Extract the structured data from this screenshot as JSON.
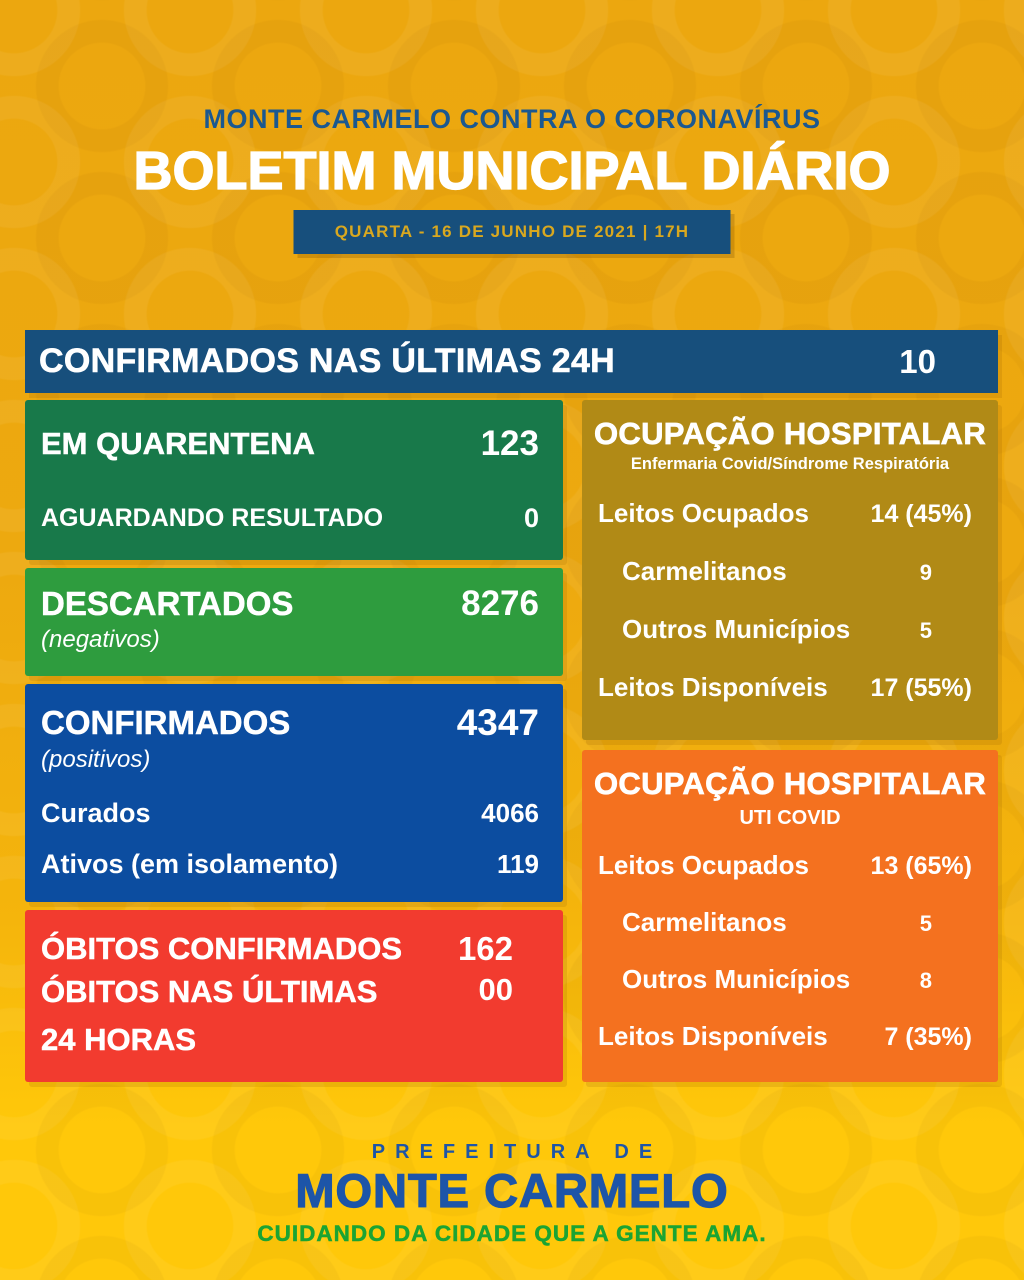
{
  "header": {
    "supertitle": "MONTE CARMELO CONTRA O CORONAVÍRUS",
    "title": "BOLETIM MUNICIPAL DIÁRIO",
    "date_badge": "QUARTA - 16 DE JUNHO DE 2021 | 17H"
  },
  "summary_bar": {
    "label": "CONFIRMADOS NAS ÚLTIMAS 24H",
    "value": "10"
  },
  "left_column": {
    "quarantine_box": {
      "rows": [
        {
          "label": "EM QUARENTENA",
          "value": "123"
        },
        {
          "label": "AGUARDANDO RESULTADO",
          "value": "0"
        }
      ]
    },
    "discarded_box": {
      "label": "DESCARTADOS",
      "sublabel": "(negativos)",
      "value": "8276"
    },
    "confirmed_box": {
      "label": "CONFIRMADOS",
      "sublabel": "(positivos)",
      "value": "4347",
      "rows": [
        {
          "label": "Curados",
          "value": "4066"
        },
        {
          "label": "Ativos (em isolamento)",
          "value": "119"
        }
      ]
    },
    "deaths_box": {
      "rows": [
        {
          "label": "ÓBITOS CONFIRMADOS",
          "value": "162"
        },
        {
          "label": "ÓBITOS NAS ÚLTIMAS 24 HORAS",
          "value": "00"
        }
      ]
    }
  },
  "right_column": {
    "ward_box": {
      "title": "OCUPAÇÃO HOSPITALAR",
      "subtitle": "Enfermaria Covid/Síndrome Respiratória",
      "rows": [
        {
          "label": "Leitos Ocupados",
          "value": "14 (45%)"
        },
        {
          "label": "Carmelitanos",
          "value": "9"
        },
        {
          "label": "Outros Municípios",
          "value": "5"
        },
        {
          "label": "Leitos Disponíveis",
          "value": "17 (55%)"
        }
      ]
    },
    "icu_box": {
      "title": "OCUPAÇÃO HOSPITALAR",
      "subtitle": "UTI COVID",
      "rows": [
        {
          "label": "Leitos Ocupados",
          "value": "13 (65%)"
        },
        {
          "label": "Carmelitanos",
          "value": "5"
        },
        {
          "label": "Outros Municípios",
          "value": "8"
        },
        {
          "label": "Leitos Disponíveis",
          "value": "7 (35%)"
        }
      ]
    }
  },
  "footer": {
    "pretitle": "PREFEITURA DE",
    "title": "MONTE CARMELO",
    "tagline": "CUIDANDO DA CIDADE QUE A GENTE AMA."
  },
  "colors": {
    "background_top": "#ECA70F",
    "background_bottom": "#FFC80A",
    "navy": "#174F7C",
    "badge_text_gold": "#D9A81F",
    "header_blue": "#1B5890",
    "green_dark": "#18794A",
    "green_bright": "#2E9C3E",
    "royal_blue": "#0C4DA0",
    "red": "#F23B2F",
    "olive_gold": "#B18A16",
    "orange": "#F4711F",
    "brand_blue": "#1D55A8",
    "brand_green": "#1BA433"
  }
}
